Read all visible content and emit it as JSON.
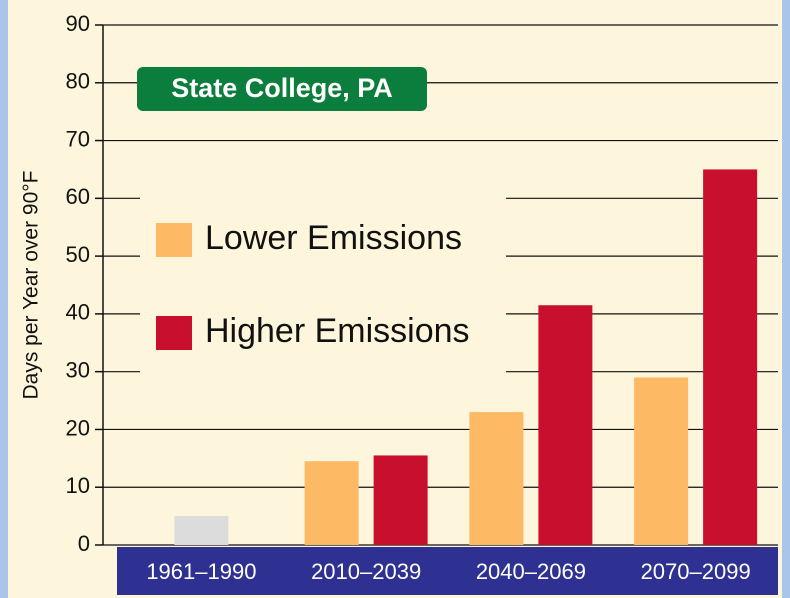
{
  "chart_data": {
    "type": "bar",
    "title": "State College, PA",
    "y_label": "Days per Year over 90°F",
    "categories": [
      "1961–1990",
      "2010–2039",
      "2040–2069",
      "2070–2099"
    ],
    "baseline_values": [
      5,
      null,
      null,
      null
    ],
    "baseline_color": "#dcdcdc",
    "series": [
      {
        "name": "Lower Emissions",
        "color": "#fdb964",
        "values": [
          null,
          14.5,
          23,
          29
        ]
      },
      {
        "name": "Higher Emissions",
        "color": "#c8102e",
        "values": [
          null,
          15.5,
          41.5,
          65
        ]
      }
    ],
    "ylim": [
      0,
      90
    ],
    "yticks": [
      0,
      10,
      20,
      30,
      40,
      50,
      60,
      70,
      80,
      90
    ],
    "grid": true
  }
}
